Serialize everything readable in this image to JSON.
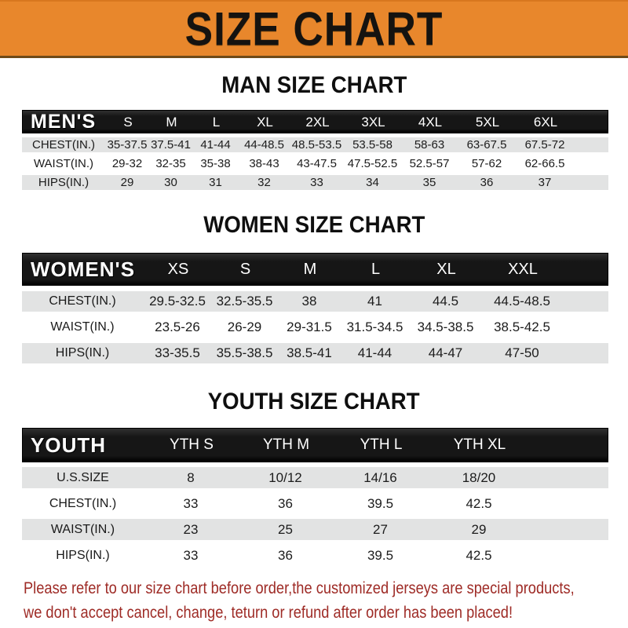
{
  "banner": {
    "title": "SIZE CHART",
    "bg_color": "#E8872C",
    "text_color": "#151310"
  },
  "chart_data": [
    {
      "type": "table",
      "title": "MAN SIZE CHART",
      "header_label": "MEN'S",
      "columns": [
        "S",
        "M",
        "L",
        "XL",
        "2XL",
        "3XL",
        "4XL",
        "5XL",
        "6XL"
      ],
      "rows": [
        {
          "label": "CHEST(IN.)",
          "values": [
            "35-37.5",
            "37.5-41",
            "41-44",
            "44-48.5",
            "48.5-53.5",
            "53.5-58",
            "58-63",
            "63-67.5",
            "67.5-72"
          ]
        },
        {
          "label": "WAIST(IN.)",
          "values": [
            "29-32",
            "32-35",
            "35-38",
            "38-43",
            "43-47.5",
            "47.5-52.5",
            "52.5-57",
            "57-62",
            "62-66.5"
          ]
        },
        {
          "label": "HIPS(IN.)",
          "values": [
            "29",
            "30",
            "31",
            "32",
            "33",
            "34",
            "35",
            "36",
            "37"
          ]
        }
      ]
    },
    {
      "type": "table",
      "title": "WOMEN SIZE CHART",
      "header_label": "WOMEN'S",
      "columns": [
        "XS",
        "S",
        "M",
        "L",
        "XL",
        "XXL"
      ],
      "rows": [
        {
          "label": "CHEST(IN.)",
          "values": [
            "29.5-32.5",
            "32.5-35.5",
            "38",
            "41",
            "44.5",
            "44.5-48.5"
          ]
        },
        {
          "label": "WAIST(IN.)",
          "values": [
            "23.5-26",
            "26-29",
            "29-31.5",
            "31.5-34.5",
            "34.5-38.5",
            "38.5-42.5"
          ]
        },
        {
          "label": "HIPS(IN.)",
          "values": [
            "33-35.5",
            "35.5-38.5",
            "38.5-41",
            "41-44",
            "44-47",
            "47-50"
          ]
        }
      ]
    },
    {
      "type": "table",
      "title": "YOUTH SIZE CHART",
      "header_label": "YOUTH",
      "columns": [
        "YTH S",
        "YTH M",
        "YTH L",
        "YTH XL"
      ],
      "rows": [
        {
          "label": "U.S.SIZE",
          "values": [
            "8",
            "10/12",
            "14/16",
            "18/20"
          ]
        },
        {
          "label": "CHEST(IN.)",
          "values": [
            "33",
            "36",
            "39.5",
            "42.5"
          ]
        },
        {
          "label": "WAIST(IN.)",
          "values": [
            "23",
            "25",
            "27",
            "29"
          ]
        },
        {
          "label": "HIPS(IN.)",
          "values": [
            "33",
            "36",
            "39.5",
            "42.5"
          ]
        }
      ]
    }
  ],
  "footer": {
    "line1": "Please refer to our size chart before order,the customized jerseys are special products,",
    "line2": "we don't accept cancel, change, teturn or refund after order has been placed!",
    "text_color": "#9E2B26"
  },
  "colors": {
    "banner_orange": "#E8872C",
    "header_black": "#161616",
    "row_gray": "#E2E3E3",
    "footer_red": "#9E2B26"
  }
}
